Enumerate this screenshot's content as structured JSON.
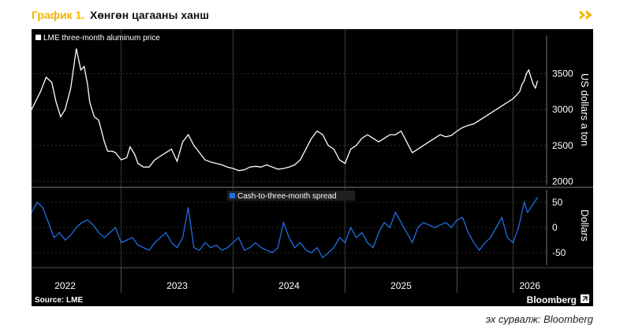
{
  "header": {
    "title_prefix": "График 1.",
    "title_main": "Хөнгөн цагааны ханш"
  },
  "footer": {
    "caption": "эх сурвалж: Bloomberg",
    "source_label": "Source: LME",
    "brand": "Bloomberg"
  },
  "colors": {
    "accent": "#f0b400",
    "price_line": "#ffffff",
    "spread_line": "#1e6fe0",
    "background": "#000000"
  },
  "chart_data": [
    {
      "type": "line",
      "title": "LME three-month aluminum price",
      "ylabel": "US dollars a ton",
      "ylim": [
        1950,
        3900
      ],
      "yticks": [
        2000,
        2500,
        3000,
        3500
      ],
      "xlim": [
        2021.7,
        2026.3
      ],
      "xtick_labels": [
        "2022",
        "2023",
        "2024",
        "2025",
        "2026"
      ],
      "grid": true,
      "series": [
        {
          "name": "LME three-month aluminum price",
          "x": [
            2021.7,
            2021.78,
            2021.83,
            2021.88,
            2021.92,
            2021.96,
            2022.0,
            2022.05,
            2022.1,
            2022.14,
            2022.17,
            2022.2,
            2022.22,
            2022.26,
            2022.3,
            2022.35,
            2022.38,
            2022.42,
            2022.45,
            2022.5,
            2022.55,
            2022.58,
            2022.62,
            2022.65,
            2022.7,
            2022.75,
            2022.8,
            2022.85,
            2022.9,
            2022.95,
            2023.0,
            2023.05,
            2023.1,
            2023.15,
            2023.2,
            2023.25,
            2023.3,
            2023.35,
            2023.4,
            2023.45,
            2023.5,
            2023.55,
            2023.6,
            2023.65,
            2023.7,
            2023.75,
            2023.8,
            2023.85,
            2023.9,
            2023.95,
            2024.0,
            2024.05,
            2024.1,
            2024.15,
            2024.2,
            2024.25,
            2024.3,
            2024.35,
            2024.4,
            2024.45,
            2024.5,
            2024.55,
            2024.6,
            2024.65,
            2024.7,
            2024.75,
            2024.8,
            2024.85,
            2024.9,
            2024.95,
            2025.0,
            2025.05,
            2025.1,
            2025.15,
            2025.2,
            2025.25,
            2025.3,
            2025.35,
            2025.4,
            2025.45,
            2025.5,
            2025.55,
            2025.6,
            2025.65,
            2025.7,
            2025.75,
            2025.8,
            2025.85,
            2025.9,
            2025.95,
            2026.0,
            2026.03,
            2026.06,
            2026.08,
            2026.1,
            2026.12,
            2026.14,
            2026.16,
            2026.18,
            2026.2,
            2026.22
          ],
          "values": [
            3000,
            3250,
            3450,
            3380,
            3100,
            2900,
            3000,
            3300,
            3850,
            3550,
            3600,
            3350,
            3100,
            2900,
            2850,
            2550,
            2420,
            2420,
            2400,
            2300,
            2330,
            2480,
            2380,
            2250,
            2200,
            2200,
            2300,
            2350,
            2400,
            2450,
            2280,
            2550,
            2650,
            2500,
            2400,
            2300,
            2270,
            2250,
            2230,
            2200,
            2180,
            2150,
            2160,
            2200,
            2210,
            2200,
            2230,
            2200,
            2170,
            2180,
            2200,
            2230,
            2300,
            2450,
            2600,
            2700,
            2650,
            2500,
            2450,
            2300,
            2250,
            2450,
            2500,
            2600,
            2650,
            2600,
            2550,
            2600,
            2650,
            2650,
            2700,
            2550,
            2400,
            2450,
            2500,
            2550,
            2600,
            2650,
            2620,
            2640,
            2700,
            2750,
            2780,
            2800,
            2850,
            2900,
            2950,
            3000,
            3050,
            3100,
            3150,
            3200,
            3250,
            3350,
            3400,
            3500,
            3550,
            3450,
            3350,
            3300,
            3400
          ]
        }
      ]
    },
    {
      "type": "line",
      "title": "Cash-to-three-month spread",
      "ylabel": "Dollars",
      "ylim": [
        -75,
        75
      ],
      "yticks": [
        -50,
        0,
        50
      ],
      "xlim": [
        2021.7,
        2026.3
      ],
      "xtick_labels": [
        "2022",
        "2023",
        "2024",
        "2025",
        "2026"
      ],
      "grid": true,
      "series": [
        {
          "name": "Cash-to-three-month spread",
          "x": [
            2021.7,
            2021.75,
            2021.8,
            2021.85,
            2021.9,
            2021.95,
            2022.0,
            2022.05,
            2022.1,
            2022.15,
            2022.2,
            2022.25,
            2022.3,
            2022.35,
            2022.4,
            2022.45,
            2022.5,
            2022.55,
            2022.6,
            2022.65,
            2022.7,
            2022.75,
            2022.8,
            2022.85,
            2022.9,
            2022.95,
            2023.0,
            2023.05,
            2023.1,
            2023.15,
            2023.2,
            2023.25,
            2023.3,
            2023.35,
            2023.4,
            2023.45,
            2023.5,
            2023.55,
            2023.6,
            2023.65,
            2023.7,
            2023.75,
            2023.8,
            2023.85,
            2023.9,
            2023.95,
            2024.0,
            2024.05,
            2024.1,
            2024.15,
            2024.2,
            2024.25,
            2024.3,
            2024.35,
            2024.4,
            2024.45,
            2024.5,
            2024.55,
            2024.6,
            2024.65,
            2024.7,
            2024.75,
            2024.8,
            2024.85,
            2024.9,
            2024.95,
            2025.0,
            2025.05,
            2025.1,
            2025.15,
            2025.2,
            2025.25,
            2025.3,
            2025.35,
            2025.4,
            2025.45,
            2025.5,
            2025.55,
            2025.6,
            2025.65,
            2025.7,
            2025.75,
            2025.8,
            2025.85,
            2025.9,
            2025.95,
            2026.0,
            2026.05,
            2026.1,
            2026.13,
            2026.16,
            2026.19,
            2026.22
          ],
          "values": [
            30,
            50,
            40,
            10,
            -20,
            -10,
            -25,
            -15,
            0,
            10,
            15,
            5,
            -10,
            -20,
            -10,
            0,
            -30,
            -25,
            -20,
            -35,
            -40,
            -45,
            -30,
            -20,
            -10,
            -30,
            -40,
            -20,
            40,
            -40,
            -45,
            -30,
            -40,
            -35,
            -45,
            -40,
            -30,
            -20,
            -45,
            -40,
            -30,
            -40,
            -45,
            -50,
            -40,
            10,
            -20,
            -40,
            -30,
            -45,
            -50,
            -40,
            -60,
            -50,
            -40,
            -20,
            -30,
            0,
            -20,
            -10,
            -30,
            -40,
            -10,
            10,
            0,
            30,
            10,
            -10,
            -30,
            0,
            10,
            5,
            0,
            5,
            10,
            0,
            15,
            20,
            -10,
            -30,
            -45,
            -30,
            -20,
            0,
            20,
            -20,
            -30,
            0,
            50,
            30,
            40,
            50,
            60
          ]
        }
      ]
    }
  ]
}
